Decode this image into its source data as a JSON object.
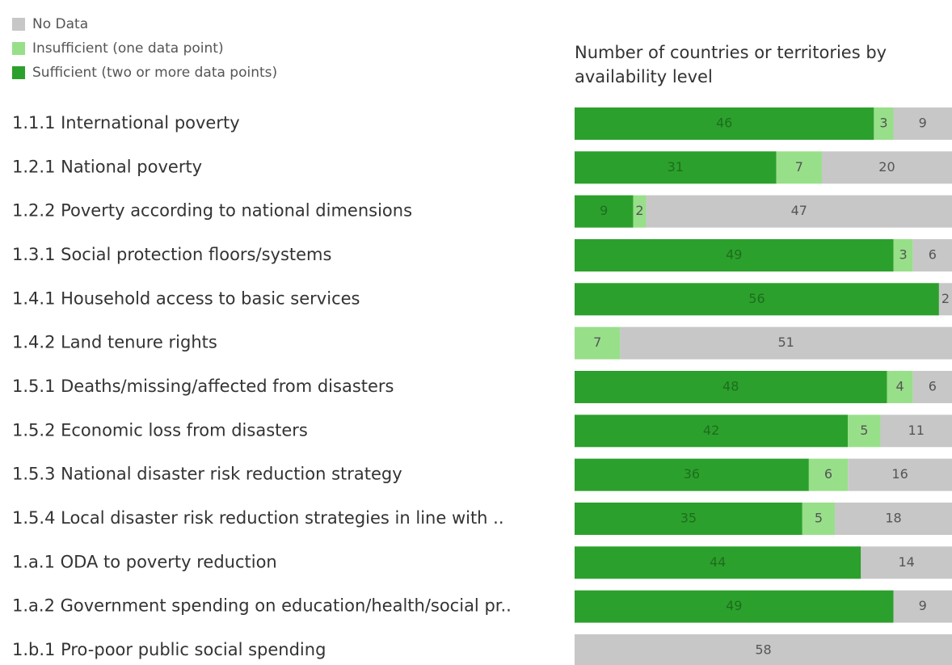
{
  "chart_data": {
    "type": "stacked-bar-horizontal",
    "title": "Number of countries or territories by availability level",
    "categories": [
      "1.1.1 International poverty",
      "1.2.1 National poverty",
      "1.2.2 Poverty according to national dimensions",
      "1.3.1 Social protection floors/systems",
      "1.4.1 Household access to basic services",
      "1.4.2 Land tenure rights",
      "1.5.1 Deaths/missing/affected from disasters",
      "1.5.2 Economic loss from disasters",
      "1.5.3 National disaster risk reduction strategy",
      "1.5.4 Local disaster risk reduction strategies in line with ..",
      "1.a.1 ODA to poverty reduction",
      "1.a.2 Government spending on education/health/social pr..",
      "1.b.1 Pro-poor public social spending"
    ],
    "series": [
      {
        "name": "Sufficient (two or more data points)",
        "color": "#2ca02c",
        "values": [
          46,
          31,
          9,
          49,
          56,
          null,
          48,
          42,
          36,
          35,
          44,
          49,
          null
        ]
      },
      {
        "name": "Insufficient (one data point)",
        "color": "#98df8a",
        "values": [
          3,
          7,
          2,
          3,
          null,
          7,
          4,
          5,
          6,
          5,
          null,
          null,
          null
        ]
      },
      {
        "name": "No Data",
        "color": "#c7c7c7",
        "values": [
          9,
          20,
          47,
          6,
          2,
          51,
          6,
          11,
          16,
          18,
          14,
          9,
          58
        ]
      }
    ],
    "xlim": [
      0,
      58
    ]
  }
}
